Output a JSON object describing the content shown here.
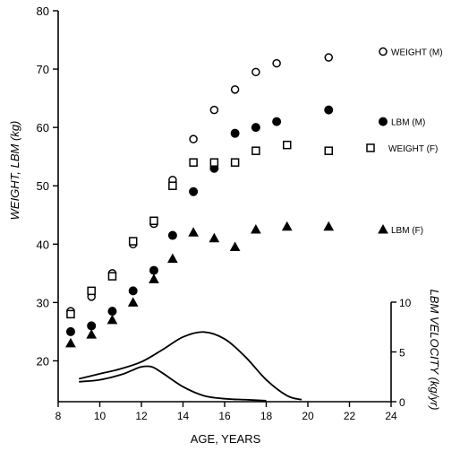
{
  "chart_data": {
    "type": "scatter",
    "xlabel": "AGE, YEARS",
    "ylabel": "WEIGHT, LBM (kg)",
    "y2label": "LBM VELOCITY (kg/yr)",
    "xlim": [
      8,
      24
    ],
    "ylim": [
      13,
      80
    ],
    "y2lim": [
      0,
      10
    ],
    "x_ticks": [
      8,
      10,
      12,
      14,
      16,
      18,
      20,
      22,
      24
    ],
    "y_ticks": [
      20,
      30,
      40,
      50,
      60,
      70,
      80
    ],
    "y2_ticks": [
      0,
      5,
      10
    ],
    "series": [
      {
        "name": "WEIGHT (M)",
        "marker": "open-circle",
        "x": [
          8.6,
          9.6,
          10.6,
          11.6,
          12.6,
          13.5,
          14.5,
          15.5,
          16.5,
          17.5,
          18.5,
          21.0
        ],
        "y": [
          28.5,
          31.0,
          35.0,
          40.0,
          43.5,
          51.0,
          58.0,
          63.0,
          66.5,
          69.5,
          71.0,
          72.0
        ]
      },
      {
        "name": "LBM (M)",
        "marker": "filled-circle",
        "x": [
          8.6,
          9.6,
          10.6,
          11.6,
          12.6,
          13.5,
          14.5,
          15.5,
          16.5,
          17.5,
          18.5,
          21.0
        ],
        "y": [
          25.0,
          26.0,
          28.5,
          32.0,
          35.5,
          41.5,
          49.0,
          53.0,
          59.0,
          60.0,
          61.0,
          63.0
        ]
      },
      {
        "name": "WEIGHT (F)",
        "marker": "open-square",
        "x": [
          8.6,
          9.6,
          10.6,
          11.6,
          12.6,
          13.5,
          14.5,
          15.5,
          16.5,
          17.5,
          19.0,
          21.0
        ],
        "y": [
          28.0,
          32.0,
          34.5,
          40.5,
          44.0,
          50.0,
          54.0,
          54.0,
          54.0,
          56.0,
          57.0,
          56.0
        ]
      },
      {
        "name": "LBM (F)",
        "marker": "filled-triangle",
        "x": [
          8.6,
          9.6,
          10.6,
          11.6,
          12.6,
          13.5,
          14.5,
          15.5,
          16.5,
          17.5,
          19.0,
          21.0
        ],
        "y": [
          23.0,
          24.5,
          27.0,
          30.0,
          34.0,
          37.5,
          42.0,
          41.0,
          39.5,
          42.5,
          43.0,
          43.0
        ]
      }
    ],
    "velocity_curves": [
      {
        "x": [
          9,
          10,
          11,
          12,
          13,
          14,
          15,
          16,
          17,
          18,
          19,
          19.7
        ],
        "y": [
          2.3,
          2.8,
          3.3,
          4.0,
          5.2,
          6.5,
          7.0,
          6.3,
          4.5,
          2.2,
          0.6,
          0.2
        ]
      },
      {
        "x": [
          9,
          10,
          11,
          11.5,
          12,
          12.5,
          13,
          14,
          15,
          16,
          17,
          18
        ],
        "y": [
          2.0,
          2.2,
          2.7,
          3.1,
          3.5,
          3.5,
          2.9,
          1.5,
          0.6,
          0.3,
          0.2,
          0.1
        ]
      }
    ],
    "legend": [
      "WEIGHT (M)",
      "LBM (M)",
      "WEIGHT (F)",
      "LBM (F)"
    ]
  }
}
